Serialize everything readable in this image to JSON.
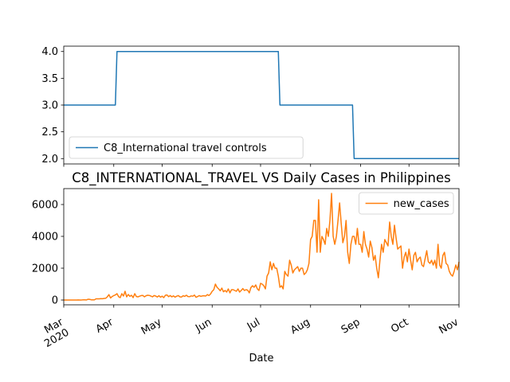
{
  "chart_data": [
    {
      "type": "line",
      "series": [
        {
          "name": "C8_International travel controls",
          "color": "#1f77b4",
          "values": [
            3,
            3,
            3,
            3,
            3,
            3,
            3,
            3,
            3,
            3,
            3,
            3,
            3,
            3,
            3,
            3,
            3,
            3,
            3,
            3,
            3,
            3,
            3,
            3,
            3,
            3,
            3,
            3,
            3,
            3,
            3,
            3,
            3,
            4,
            4,
            4,
            4,
            4,
            4,
            4,
            4,
            4,
            4,
            4,
            4,
            4,
            4,
            4,
            4,
            4,
            4,
            4,
            4,
            4,
            4,
            4,
            4,
            4,
            4,
            4,
            4,
            4,
            4,
            4,
            4,
            4,
            4,
            4,
            4,
            4,
            4,
            4,
            4,
            4,
            4,
            4,
            4,
            4,
            4,
            4,
            4,
            4,
            4,
            4,
            4,
            4,
            4,
            4,
            4,
            4,
            4,
            4,
            4,
            4,
            4,
            4,
            4,
            4,
            4,
            4,
            4,
            4,
            4,
            4,
            4,
            4,
            4,
            4,
            4,
            4,
            4,
            4,
            4,
            4,
            4,
            4,
            4,
            4,
            4,
            4,
            4,
            4,
            4,
            4,
            4,
            4,
            4,
            4,
            4,
            4,
            4,
            4,
            4,
            4,
            3,
            3,
            3,
            3,
            3,
            3,
            3,
            3,
            3,
            3,
            3,
            3,
            3,
            3,
            3,
            3,
            3,
            3,
            3,
            3,
            3,
            3,
            3,
            3,
            3,
            3,
            3,
            3,
            3,
            3,
            3,
            3,
            3,
            3,
            3,
            3,
            3,
            3,
            3,
            3,
            3,
            3,
            3,
            3,
            3,
            3,
            2,
            2,
            2,
            2,
            2,
            2,
            2,
            2,
            2,
            2,
            2,
            2,
            2,
            2,
            2,
            2,
            2,
            2,
            2,
            2,
            2,
            2,
            2,
            2,
            2,
            2,
            2,
            2,
            2,
            2,
            2,
            2,
            2,
            2,
            2,
            2,
            2,
            2,
            2,
            2,
            2,
            2,
            2,
            2,
            2,
            2,
            2,
            2,
            2,
            2,
            2,
            2,
            2,
            2,
            2,
            2,
            2,
            2,
            2,
            2,
            2,
            2,
            2,
            2,
            2,
            2
          ]
        }
      ],
      "ylim": [
        1.9,
        4.1
      ],
      "yticks": [
        {
          "value": 2,
          "label": "2.0"
        },
        {
          "value": 2.5,
          "label": "2.5"
        },
        {
          "value": 3,
          "label": "3.0"
        },
        {
          "value": 3.5,
          "label": "3.5"
        },
        {
          "value": 4,
          "label": "4.0"
        }
      ],
      "legend": "lower left"
    },
    {
      "type": "line",
      "title": "C8_INTERNATIONAL_TRAVEL VS Daily Cases in Philippines",
      "xlabel": "Date",
      "categories": [
        "Mar\n2020",
        null,
        null,
        null,
        null,
        null,
        null,
        null,
        null,
        null,
        null,
        null,
        null,
        null,
        null,
        null,
        null,
        null,
        null,
        null,
        null,
        null,
        null,
        null,
        null,
        null,
        null,
        null,
        null,
        null,
        null,
        "Apr",
        null,
        null,
        null,
        null,
        null,
        null,
        null,
        null,
        null,
        null,
        null,
        null,
        null,
        null,
        null,
        null,
        null,
        null,
        null,
        null,
        null,
        null,
        null,
        null,
        null,
        null,
        null,
        null,
        null,
        "May",
        null,
        null,
        null,
        null,
        null,
        null,
        null,
        null,
        null,
        null,
        null,
        null,
        null,
        null,
        null,
        null,
        null,
        null,
        null,
        null,
        null,
        null,
        null,
        null,
        null,
        null,
        null,
        null,
        null,
        null,
        "Jun",
        null,
        null,
        null,
        null,
        null,
        null,
        null,
        null,
        null,
        null,
        null,
        null,
        null,
        null,
        null,
        null,
        null,
        null,
        null,
        null,
        null,
        null,
        null,
        null,
        null,
        null,
        null,
        null,
        null,
        "Jul",
        null,
        null,
        null,
        null,
        null,
        null,
        null,
        null,
        null,
        null,
        null,
        null,
        null,
        null,
        null,
        null,
        null,
        null,
        null,
        null,
        null,
        null,
        null,
        null,
        null,
        null,
        null,
        null,
        null,
        null,
        "Aug",
        null,
        null,
        null,
        null,
        null,
        null,
        null,
        null,
        null,
        null,
        null,
        null,
        null,
        null,
        null,
        null,
        null,
        null,
        null,
        null,
        null,
        null,
        null,
        null,
        null,
        null,
        null,
        null,
        null,
        null,
        "Sep",
        null,
        null,
        null,
        null,
        null,
        null,
        null,
        null,
        null,
        null,
        null,
        null,
        null,
        null,
        null,
        null,
        null,
        null,
        null,
        null,
        null,
        null,
        null,
        null,
        null,
        null,
        null,
        null,
        null,
        "Oct",
        null,
        null,
        null,
        null,
        null,
        null,
        null,
        null,
        null,
        null,
        null,
        null,
        null,
        null,
        null,
        null,
        null,
        null,
        null,
        null,
        null,
        null,
        null,
        null,
        null,
        null,
        null,
        null,
        null,
        null,
        "Nov"
      ],
      "series": [
        {
          "name": "new_cases",
          "color": "#ff7f0e",
          "values": [
            0,
            0,
            0,
            0,
            0,
            0,
            1,
            0,
            0,
            4,
            0,
            3,
            12,
            10,
            5,
            47,
            45,
            15,
            15,
            13,
            75,
            77,
            73,
            90,
            80,
            102,
            110,
            200,
            340,
            130,
            220,
            280,
            320,
            400,
            210,
            150,
            400,
            250,
            550,
            200,
            350,
            230,
            300,
            150,
            400,
            220,
            200,
            240,
            280,
            290,
            200,
            270,
            300,
            290,
            250,
            200,
            280,
            250,
            190,
            270,
            180,
            240,
            150,
            300,
            320,
            210,
            280,
            200,
            260,
            180,
            240,
            280,
            200,
            190,
            270,
            230,
            300,
            220,
            210,
            260,
            240,
            310,
            170,
            220,
            280,
            230,
            260,
            270,
            250,
            340,
            280,
            380,
            550,
            650,
            1000,
            800,
            700,
            580,
            750,
            520,
            600,
            500,
            700,
            450,
            650,
            650,
            600,
            550,
            700,
            500,
            600,
            720,
            600,
            650,
            620,
            450,
            780,
            900,
            800,
            950,
            700,
            600,
            1050,
            1000,
            900,
            700,
            1500,
            1700,
            2400,
            1900,
            2300,
            2000,
            2000,
            1500,
            800,
            900,
            700,
            1800,
            1600,
            1500,
            2500,
            2200,
            1700,
            1900,
            2000,
            2100,
            1800,
            2000,
            2000,
            1600,
            1700,
            1900,
            2300,
            3800,
            4000,
            5000,
            5000,
            3000,
            6300,
            3000,
            4000,
            3800,
            3500,
            4500,
            4000,
            5000,
            6700,
            4000,
            3500,
            4000,
            5000,
            6100,
            4800,
            3600,
            4000,
            5000,
            3000,
            2300,
            3500,
            4000,
            4000,
            3500,
            4500,
            3500,
            3500,
            3000,
            4300,
            3500,
            3200,
            2700,
            3700,
            3300,
            2500,
            2800,
            2000,
            1400,
            2500,
            3500,
            3000,
            3800,
            3600,
            3400,
            4900,
            4000,
            3500,
            4700,
            3900,
            3200,
            3300,
            3400,
            2000,
            2700,
            3000,
            2400,
            3200,
            2500,
            1900,
            2800,
            3000,
            2400,
            2600,
            2700,
            2200,
            2100,
            2600,
            3100,
            2400,
            2300,
            2500,
            2200,
            2500,
            2000,
            3500,
            2200,
            2000,
            2800,
            3000,
            2300,
            2200,
            1800,
            1600,
            1500,
            1800,
            2200,
            1900,
            2400
          ]
        }
      ],
      "ylim": [
        -300,
        7000
      ],
      "yticks": [
        0,
        2000,
        4000,
        6000
      ],
      "legend": "upper right"
    }
  ]
}
